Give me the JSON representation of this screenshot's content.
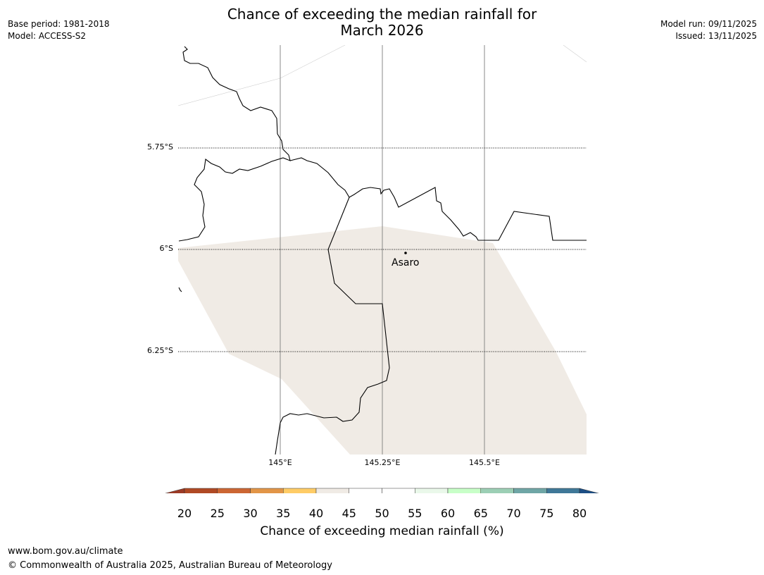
{
  "header": {
    "title_line1": "Chance of exceeding the median rainfall for",
    "title_line2": "March 2026",
    "base_period": "Base period: 1981-2018",
    "model": "Model: ACCESS-S2",
    "model_run": "Model run: 09/11/2025",
    "issued": "Issued: 13/11/2025"
  },
  "map": {
    "lat_labels": [
      "5.75°S",
      "6°S",
      "6.25°S"
    ],
    "lon_labels": [
      "145°E",
      "145.25°E",
      "145.5°E"
    ],
    "place": "Asaro",
    "region_category": "40-45",
    "region_color": "#f0ebe5"
  },
  "colorbar": {
    "ticks": [
      "20",
      "25",
      "30",
      "35",
      "40",
      "45",
      "50",
      "55",
      "60",
      "65",
      "70",
      "75",
      "80"
    ],
    "low_extend_color": "#9c3a26",
    "high_extend_color": "#1c4e85",
    "colors": [
      "#b04924",
      "#cc6633",
      "#e29547",
      "#ffcc66",
      "#f0ebe5",
      "#ffffff",
      "#ffffff",
      "#eaf8ea",
      "#c8ffc8",
      "#9ccfb5",
      "#6fa6a6",
      "#3f7898"
    ],
    "label": "Chance of exceeding median rainfall (%)"
  },
  "footer": {
    "url": "www.bom.gov.au/climate",
    "copyright": "© Commonwealth of Australia 2025, Australian Bureau of Meteorology"
  }
}
